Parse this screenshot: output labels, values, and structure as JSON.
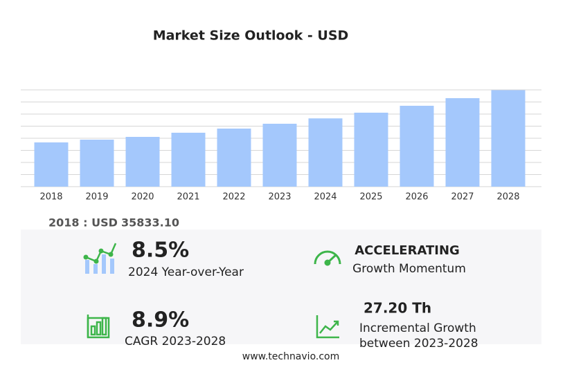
{
  "chart_data": {
    "type": "bar",
    "title": "Market Size Outlook  - USD",
    "categories": [
      "2018",
      "2019",
      "2020",
      "2021",
      "2022",
      "2023",
      "2024",
      "2025",
      "2026",
      "2027",
      "2028"
    ],
    "values": [
      35833.1,
      38080,
      40320,
      43680,
      47040,
      50960,
      55300,
      59920,
      65520,
      71680,
      78160
    ],
    "color": "#a4c8fc",
    "ylim": [
      0,
      78400
    ],
    "yticks": [
      0,
      9800,
      19600,
      29400,
      39200,
      49000,
      58800,
      68600,
      78400
    ],
    "grid": true
  },
  "highlight": {
    "label": "2018 : USD",
    "value": "35833.10"
  },
  "kpis": [
    {
      "value": "8.5%",
      "caption": "2024 Year-over-Year"
    },
    {
      "value": "ACCELERATING",
      "caption": "Growth Momentum"
    },
    {
      "value": "8.9%",
      "caption": "CAGR 2023-2028"
    },
    {
      "value": "27.20 Th",
      "caption": "Incremental Growth",
      "caption2": "between 2023-2028"
    }
  ],
  "footer": "www.technavio.com"
}
